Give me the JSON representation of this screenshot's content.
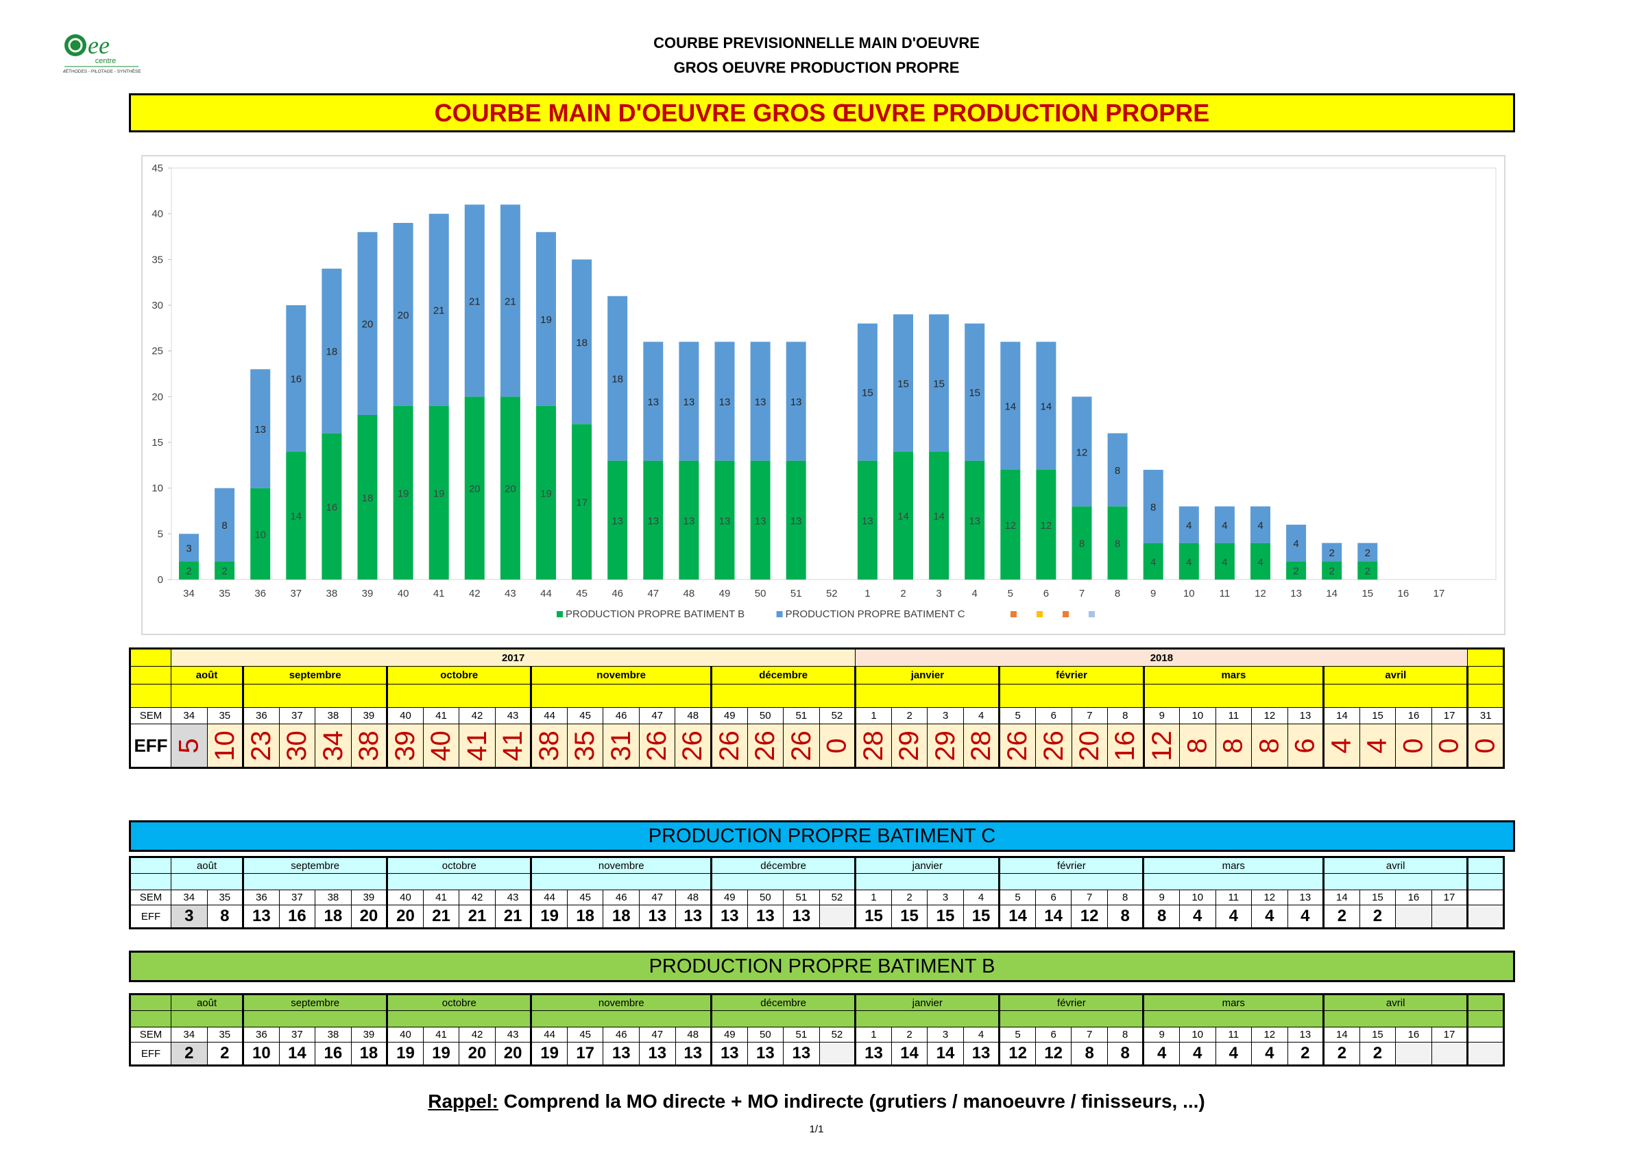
{
  "logo": {
    "mark": "ee",
    "word": "centre",
    "tagline": "MÉTHODES - PILOTAGE - SYNTHÈSE"
  },
  "header": {
    "line1": "COURBE PREVISIONNELLE MAIN D'OEUVRE",
    "line2": "GROS OEUVRE PRODUCTION PROPRE"
  },
  "main_banner": {
    "title": "COURBE MAIN D'OEUVRE  GROS ŒUVRE PRODUCTION PROPRE",
    "bg": "#ffff00",
    "color": "#c00000"
  },
  "chart_data": {
    "type": "bar",
    "stacked": true,
    "categories": [
      "34",
      "35",
      "36",
      "37",
      "38",
      "39",
      "40",
      "41",
      "42",
      "43",
      "44",
      "45",
      "46",
      "47",
      "48",
      "49",
      "50",
      "51",
      "52",
      "1",
      "2",
      "3",
      "4",
      "5",
      "6",
      "7",
      "8",
      "9",
      "10",
      "11",
      "12",
      "13",
      "14",
      "15",
      "16",
      "17"
    ],
    "series": [
      {
        "name": "PRODUCTION PROPRE BATIMENT B",
        "color": "#00b050",
        "values": [
          2,
          2,
          10,
          14,
          16,
          18,
          19,
          19,
          20,
          20,
          19,
          17,
          13,
          13,
          13,
          13,
          13,
          13,
          0,
          13,
          14,
          14,
          13,
          12,
          12,
          8,
          8,
          4,
          4,
          4,
          4,
          2,
          2,
          2,
          0,
          0
        ]
      },
      {
        "name": "PRODUCTION PROPRE BATIMENT C",
        "color": "#5b9bd5",
        "values": [
          3,
          8,
          13,
          16,
          18,
          20,
          20,
          21,
          21,
          21,
          19,
          18,
          18,
          13,
          13,
          13,
          13,
          13,
          0,
          15,
          15,
          15,
          15,
          14,
          14,
          12,
          8,
          8,
          4,
          4,
          4,
          4,
          2,
          2,
          0,
          0
        ]
      }
    ],
    "legend_extra_colors": [
      "#ed7d31",
      "#ffc000",
      "#ed7d31",
      "#a5c3e6"
    ],
    "ylim": [
      0,
      45
    ],
    "yticks": [
      0,
      5,
      10,
      15,
      20,
      25,
      30,
      35,
      40,
      45
    ],
    "legend_position": "bottom",
    "grid": false
  },
  "summary_table": {
    "years": [
      {
        "label": "2017"
      },
      {
        "label": "2018"
      }
    ],
    "months": [
      "août",
      "septembre",
      "octobre",
      "novembre",
      "décembre",
      "janvier",
      "février",
      "mars",
      "avril"
    ],
    "sem_label": "SEM",
    "eff_label": "EFF",
    "weeks": [
      "34",
      "35",
      "36",
      "37",
      "38",
      "39",
      "40",
      "41",
      "42",
      "43",
      "44",
      "45",
      "46",
      "47",
      "48",
      "49",
      "50",
      "51",
      "52",
      "1",
      "2",
      "3",
      "4",
      "5",
      "6",
      "7",
      "8",
      "9",
      "10",
      "11",
      "12",
      "13",
      "14",
      "15",
      "16",
      "17",
      "31"
    ],
    "eff": [
      "5",
      "10",
      "23",
      "30",
      "34",
      "38",
      "39",
      "40",
      "41",
      "41",
      "38",
      "35",
      "31",
      "26",
      "26",
      "26",
      "26",
      "26",
      "0",
      "28",
      "29",
      "29",
      "28",
      "26",
      "26",
      "20",
      "16",
      "12",
      "8",
      "8",
      "8",
      "6",
      "4",
      "4",
      "0",
      "0",
      "0"
    ]
  },
  "table_c": {
    "title": "PRODUCTION PROPRE BATIMENT C",
    "bg": "#00b0f0",
    "months": [
      "août",
      "septembre",
      "octobre",
      "novembre",
      "décembre",
      "janvier",
      "février",
      "mars",
      "avril"
    ],
    "sem_label": "SEM",
    "eff_label": "EFF",
    "weeks": [
      "34",
      "35",
      "36",
      "37",
      "38",
      "39",
      "40",
      "41",
      "42",
      "43",
      "44",
      "45",
      "46",
      "47",
      "48",
      "49",
      "50",
      "51",
      "52",
      "1",
      "2",
      "3",
      "4",
      "5",
      "6",
      "7",
      "8",
      "9",
      "10",
      "11",
      "12",
      "13",
      "14",
      "15",
      "16",
      "17"
    ],
    "eff": [
      "3",
      "8",
      "13",
      "16",
      "18",
      "20",
      "20",
      "21",
      "21",
      "21",
      "19",
      "18",
      "18",
      "13",
      "13",
      "13",
      "13",
      "13",
      "",
      "15",
      "15",
      "15",
      "15",
      "14",
      "14",
      "12",
      "8",
      "8",
      "4",
      "4",
      "4",
      "4",
      "2",
      "2",
      "",
      ""
    ]
  },
  "table_b": {
    "title": "PRODUCTION PROPRE BATIMENT B",
    "bg": "#92d050",
    "months": [
      "août",
      "septembre",
      "octobre",
      "novembre",
      "décembre",
      "janvier",
      "février",
      "mars",
      "avril"
    ],
    "sem_label": "SEM",
    "eff_label": "EFF",
    "weeks": [
      "34",
      "35",
      "36",
      "37",
      "38",
      "39",
      "40",
      "41",
      "42",
      "43",
      "44",
      "45",
      "46",
      "47",
      "48",
      "49",
      "50",
      "51",
      "52",
      "1",
      "2",
      "3",
      "4",
      "5",
      "6",
      "7",
      "8",
      "9",
      "10",
      "11",
      "12",
      "13",
      "14",
      "15",
      "16",
      "17"
    ],
    "eff": [
      "2",
      "2",
      "10",
      "14",
      "16",
      "18",
      "19",
      "19",
      "20",
      "20",
      "19",
      "17",
      "13",
      "13",
      "13",
      "13",
      "13",
      "13",
      "",
      "13",
      "14",
      "14",
      "13",
      "12",
      "12",
      "8",
      "8",
      "4",
      "4",
      "4",
      "4",
      "2",
      "2",
      "2",
      "",
      ""
    ]
  },
  "footnote": {
    "label": "Rappel:",
    "text": " Comprend la MO directe  + MO indirecte (grutiers / manoeuvre / finisseurs, ...)"
  },
  "page": "1/1"
}
